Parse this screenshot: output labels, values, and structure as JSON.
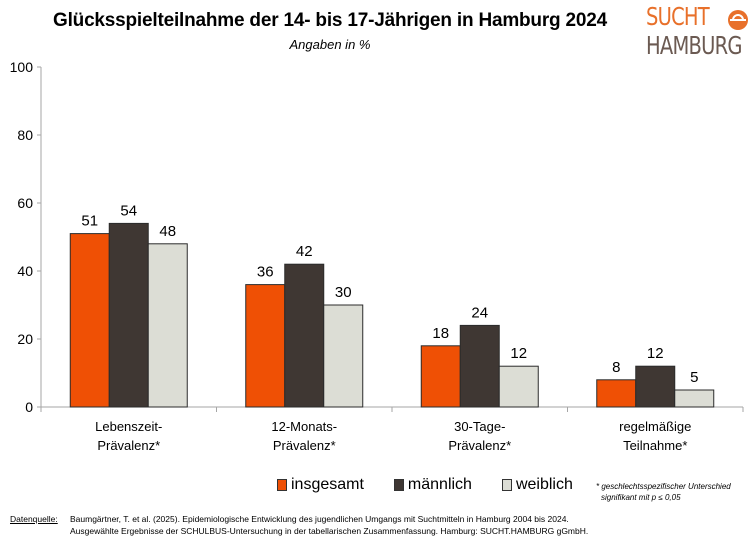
{
  "header": {
    "title": "Glücksspielteilnahme der 14- bis 17-Jährigen in Hamburg 2024",
    "subtitle": "Angaben in %"
  },
  "logo": {
    "line1": "SUCHT",
    "line2": "HAMBURG",
    "icon": "sucht-hamburg-circle-icon",
    "colors": {
      "primary": "#e8702a",
      "secondary": "#6b5a52"
    }
  },
  "chart_data": {
    "type": "bar",
    "title": "Glücksspielteilnahme der 14- bis 17-Jährigen in Hamburg 2024",
    "subtitle": "Angaben in %",
    "xlabel": "",
    "ylabel": "",
    "ylim": [
      0,
      100
    ],
    "yticks": [
      0,
      20,
      40,
      60,
      80,
      100
    ],
    "grid": false,
    "legend_position": "bottom",
    "categories": [
      [
        "Lebenszeit-",
        "Prävalenz*"
      ],
      [
        "12-Monats-",
        "Prävalenz*"
      ],
      [
        "30-Tage-",
        "Prävalenz*"
      ],
      [
        "regelmäßige",
        "Teilnahme*"
      ]
    ],
    "series": [
      {
        "name": "insgesamt",
        "color": "#ef5005",
        "values": [
          51,
          36,
          18,
          8
        ]
      },
      {
        "name": "männlich",
        "color": "#3f3733",
        "values": [
          54,
          42,
          24,
          12
        ]
      },
      {
        "name": "weiblich",
        "color": "#dcddd5",
        "values": [
          48,
          30,
          12,
          5
        ]
      }
    ],
    "data_labels": true
  },
  "footnote": {
    "line1": "* geschlechtsspezifischer Unterschied",
    "line2": "signifikant mit p ≤ 0,05"
  },
  "source": {
    "label": "Datenquelle:",
    "line1": "Baumgärtner, T. et al. (2025). Epidemiologische Entwicklung des jugendlichen Umgangs mit Suchtmitteln in Hamburg 2004 bis 2024.",
    "line2": "Ausgewählte Ergebnisse der SCHULBUS-Untersuchung in der tabellarischen Zusammenfassung. Hamburg: SUCHT.HAMBURG gGmbH."
  }
}
